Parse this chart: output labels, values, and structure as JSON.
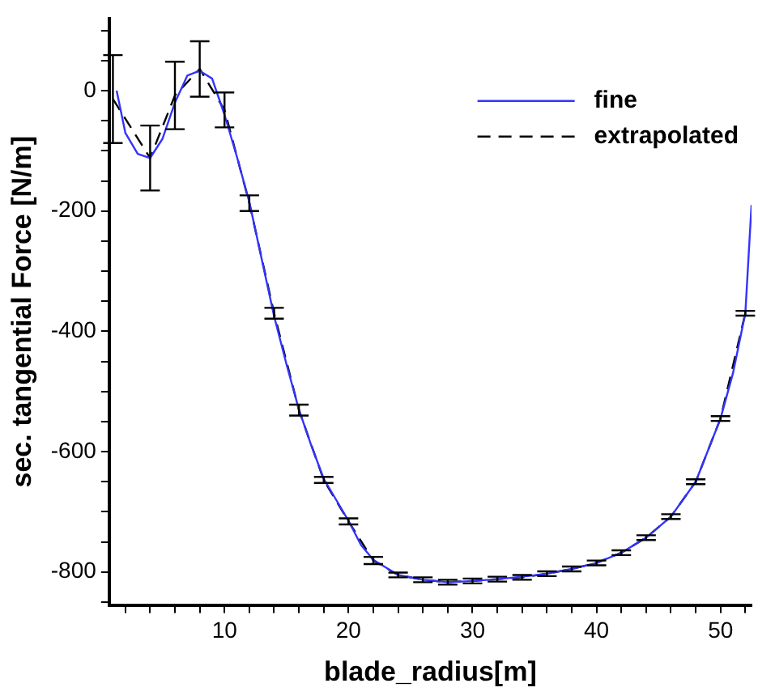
{
  "chart_data": {
    "type": "line",
    "xlabel": "blade_radius[m]",
    "ylabel": "sec. tangential Force [N/m]",
    "xlim": [
      0.7,
      52.5
    ],
    "ylim": [
      -855,
      120
    ],
    "xticks": [
      {
        "value": 2,
        "label": null
      },
      {
        "value": 4,
        "label": null
      },
      {
        "value": 6,
        "label": null
      },
      {
        "value": 8,
        "label": null
      },
      10,
      {
        "value": 12,
        "label": null
      },
      {
        "value": 14,
        "label": null
      },
      {
        "value": 16,
        "label": null
      },
      {
        "value": 18,
        "label": null
      },
      20,
      {
        "value": 22,
        "label": null
      },
      {
        "value": 24,
        "label": null
      },
      {
        "value": 26,
        "label": null
      },
      {
        "value": 28,
        "label": null
      },
      30,
      {
        "value": 32,
        "label": null
      },
      {
        "value": 34,
        "label": null
      },
      {
        "value": 36,
        "label": null
      },
      {
        "value": 38,
        "label": null
      },
      40,
      {
        "value": 42,
        "label": null
      },
      {
        "value": 44,
        "label": null
      },
      {
        "value": 46,
        "label": null
      },
      {
        "value": 48,
        "label": null
      },
      50,
      {
        "value": 52,
        "label": null
      }
    ],
    "yticks": [
      {
        "value": -850,
        "label": null
      },
      -800,
      {
        "value": -750,
        "label": null
      },
      {
        "value": -700,
        "label": null
      },
      {
        "value": -650,
        "label": null
      },
      -600,
      {
        "value": -550,
        "label": null
      },
      {
        "value": -500,
        "label": null
      },
      {
        "value": -450,
        "label": null
      },
      -400,
      {
        "value": -350,
        "label": null
      },
      {
        "value": -300,
        "label": null
      },
      {
        "value": -250,
        "label": null
      },
      -200,
      {
        "value": -150,
        "label": null
      },
      {
        "value": -100,
        "label": null
      },
      {
        "value": -50,
        "label": null
      },
      0,
      {
        "value": 50,
        "label": null
      },
      {
        "value": 100,
        "label": null
      }
    ],
    "grid": false,
    "legend": "top right",
    "marker": "none",
    "series": [
      {
        "name": "fine",
        "color": "#3333ff",
        "line_style": "solid",
        "x": [
          1.3,
          2,
          3,
          4,
          5,
          6,
          7,
          8,
          9,
          10,
          11,
          12,
          13,
          14,
          15,
          16,
          17,
          18,
          19,
          20,
          21,
          22,
          24,
          26,
          28,
          30,
          32,
          34,
          36,
          38,
          40,
          42,
          44,
          46,
          48,
          50,
          51,
          52,
          52.5
        ],
        "values": [
          0,
          -70,
          -105,
          -112,
          -80,
          -20,
          25,
          33,
          20,
          -40,
          -110,
          -185,
          -280,
          -375,
          -455,
          -530,
          -590,
          -645,
          -680,
          -715,
          -755,
          -780,
          -805,
          -813,
          -817,
          -815,
          -812,
          -808,
          -803,
          -795,
          -785,
          -768,
          -743,
          -708,
          -650,
          -545,
          -470,
          -370,
          -190
        ]
      },
      {
        "name": "extrapolated",
        "color": "#000000",
        "line_style": "dashed",
        "x": [
          1,
          4,
          6,
          8,
          10,
          12,
          14,
          16,
          18,
          20,
          22,
          24,
          26,
          28,
          30,
          32,
          34,
          36,
          38,
          40,
          42,
          44,
          46,
          48,
          50,
          52
        ],
        "values": [
          -14,
          -112,
          -8,
          36,
          -32,
          -187,
          -370,
          -531,
          -647,
          -716,
          -781,
          -805,
          -813,
          -817,
          -815,
          -812,
          -809,
          -803,
          -795,
          -785,
          -768,
          -743,
          -708,
          -650,
          -545,
          -370
        ],
        "errors": [
          73,
          54,
          56,
          46,
          29,
          13,
          9,
          9,
          5,
          5,
          6,
          4,
          4,
          4,
          4,
          4,
          4,
          4,
          4,
          4,
          4,
          4,
          4,
          4,
          4,
          4
        ]
      }
    ]
  }
}
